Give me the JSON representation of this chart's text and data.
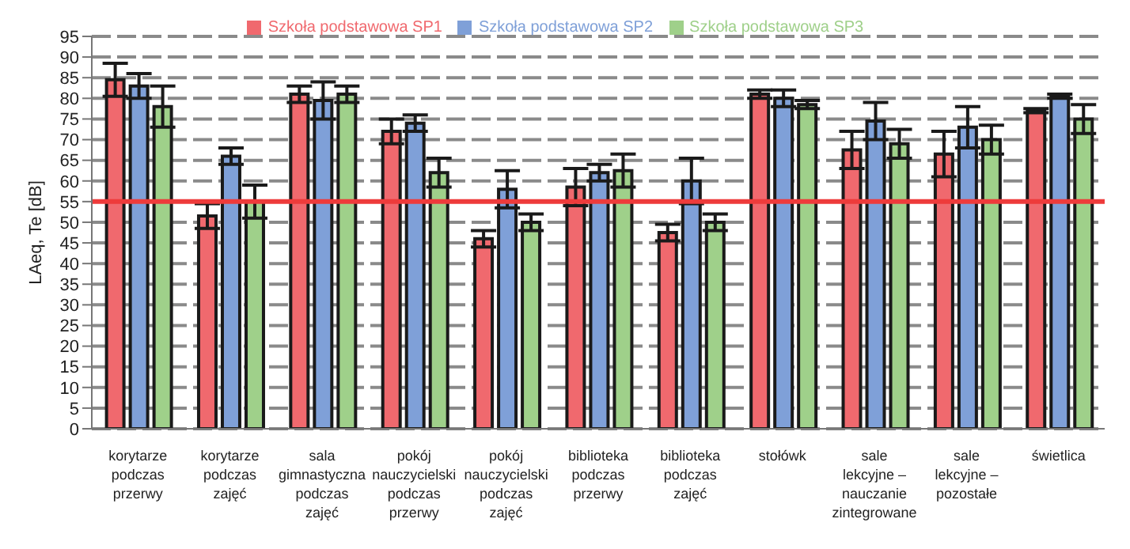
{
  "chart_data": {
    "type": "bar",
    "ylabel": "LAeq, Te [dB]",
    "categories": [
      "korytarze podczas przerwy",
      "korytarze podczas zajęć",
      "sala gimnastyczna podczas zajęć",
      "pokój nauczycielski podczas przerwy",
      "pokój nauczycielski podczas zajęć",
      "biblioteka podczas przerwy",
      "biblioteka podczas zajęć",
      "stołówk",
      "sale lekcyjne – nauczanie zintegrowane",
      "sale lekcyjne – pozostałe",
      "świetlica"
    ],
    "series": [
      {
        "name": "Szkoła podstawowa SP1",
        "color": "#f0696e",
        "values": [
          84.5,
          51.5,
          81,
          72,
          46,
          58.5,
          47.5,
          81,
          67.5,
          66.5,
          77
        ],
        "errors": [
          4,
          3,
          2,
          3,
          2,
          4.5,
          2,
          1,
          4.5,
          5.5,
          0.5
        ]
      },
      {
        "name": "Szkoła podstawowa SP2",
        "color": "#7fa0d8",
        "values": [
          83,
          66,
          79.5,
          74,
          58,
          62,
          60,
          80,
          74.5,
          73,
          80.5
        ],
        "errors": [
          3,
          2,
          4.5,
          2,
          4.5,
          2,
          5.5,
          2,
          4.5,
          5,
          0.5
        ]
      },
      {
        "name": "Szkoła podstawowa SP3",
        "color": "#9fd08a",
        "values": [
          78,
          55,
          81,
          62,
          50,
          62.5,
          50,
          78.5,
          69,
          70,
          75
        ],
        "errors": [
          5,
          4,
          2,
          3.5,
          2,
          4,
          2,
          1,
          3.5,
          3.5,
          3.5
        ]
      }
    ],
    "ylim": [
      0,
      95
    ],
    "yticks": [
      0,
      5,
      10,
      15,
      20,
      25,
      30,
      35,
      40,
      45,
      50,
      55,
      60,
      65,
      70,
      75,
      80,
      85,
      90,
      95
    ],
    "grid": true,
    "legend": "top",
    "ref_lines": [
      {
        "axis": "y",
        "value": 55,
        "color": "#ee3b3b"
      }
    ]
  }
}
